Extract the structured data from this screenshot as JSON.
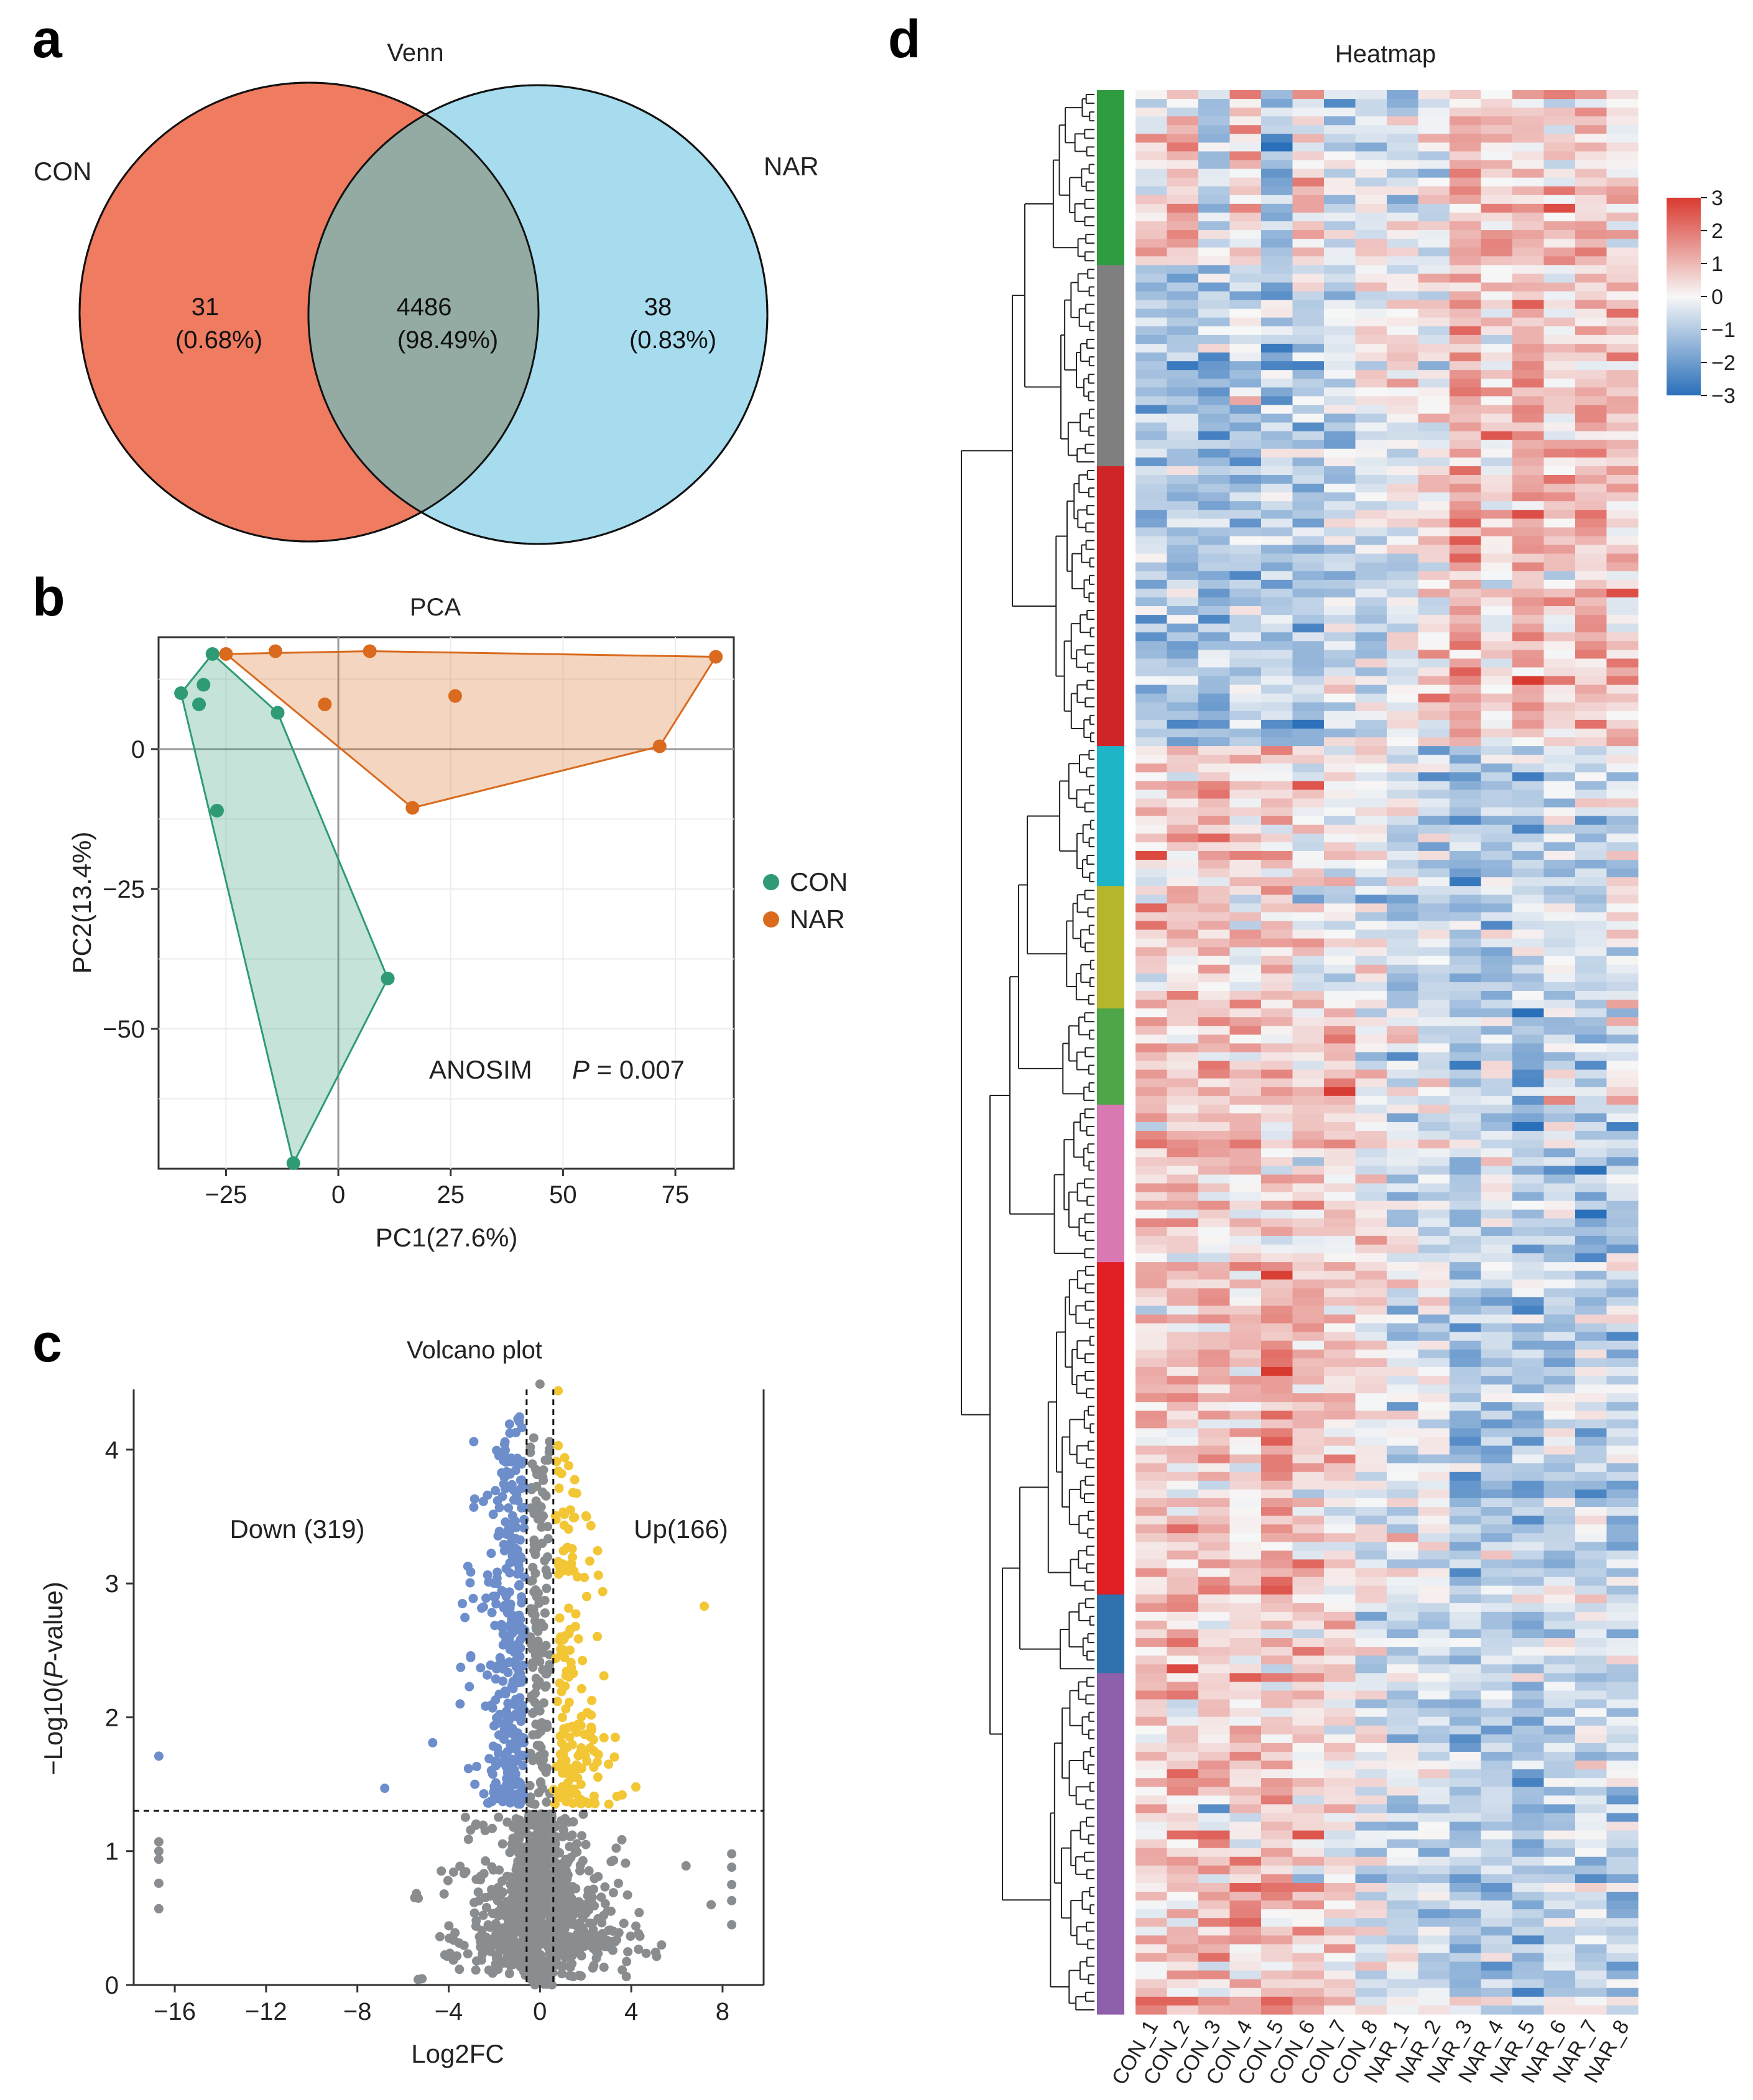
{
  "panel_labels": {
    "a": "a",
    "b": "b",
    "c": "c",
    "d": "d"
  },
  "colors": {
    "con_venn": "#ef7b60",
    "nar_venn": "#a6dcee",
    "overlap": "#93aba3",
    "con_pca": "#2e9b74",
    "nar_pca": "#d96a1e",
    "down": "#6d8ecb",
    "up": "#f2c634",
    "ns": "#8a8d90"
  },
  "chart_data": [
    {
      "type": "venn",
      "title": "Venn",
      "sets": [
        {
          "name": "CON",
          "only_count": "31",
          "only_pct": "(0.68%)"
        },
        {
          "name": "NAR",
          "only_count": "38",
          "only_pct": "(0.83%)"
        }
      ],
      "overlap": {
        "count": "4486",
        "pct": "(98.49%)"
      }
    },
    {
      "type": "scatter",
      "title": "PCA",
      "xlabel": "PC1(27.6%)",
      "ylabel": "PC2(13.4%)",
      "xlim": [
        -40,
        88
      ],
      "ylim": [
        -75,
        20
      ],
      "xticks": [
        -25,
        0,
        25,
        50,
        75
      ],
      "yticks": [
        0,
        -25,
        -50
      ],
      "annotation": {
        "text": "ANOSIM",
        "p_label": "P",
        "p_value": " = 0.007"
      },
      "legend": {
        "position": "right",
        "items": [
          "CON",
          "NAR"
        ]
      },
      "series": [
        {
          "name": "CON",
          "points": [
            [
              -35,
              10
            ],
            [
              -28,
              17
            ],
            [
              -30,
              11.5
            ],
            [
              -31,
              8
            ],
            [
              -13.5,
              6.5
            ],
            [
              -27,
              -11
            ],
            [
              11,
              -41
            ],
            [
              -10,
              -74
            ]
          ],
          "hull": [
            [
              -35,
              10
            ],
            [
              -28,
              17
            ],
            [
              -13.5,
              6.5
            ],
            [
              11,
              -41
            ],
            [
              -10,
              -74
            ]
          ]
        },
        {
          "name": "NAR",
          "points": [
            [
              -25,
              17
            ],
            [
              -14,
              17.5
            ],
            [
              7,
              17.5
            ],
            [
              84,
              16.5
            ],
            [
              -3,
              8
            ],
            [
              26,
              9.5
            ],
            [
              71.5,
              0.5
            ],
            [
              16.5,
              -10.5
            ]
          ],
          "hull": [
            [
              -25,
              17
            ],
            [
              7,
              17.5
            ],
            [
              84,
              16.5
            ],
            [
              71.5,
              0.5
            ],
            [
              16.5,
              -10.5
            ]
          ]
        }
      ]
    },
    {
      "type": "scatter",
      "title": "Volcano plot",
      "xlabel": "Log2FC",
      "ylabel_pre": "−Log10(",
      "ylabel_it": "P",
      "ylabel_post": "-value)",
      "xlim": [
        -17.8,
        9.8
      ],
      "ylim": [
        0,
        4.45
      ],
      "xticks": [
        -16,
        -12,
        -8,
        -4,
        0,
        4,
        8
      ],
      "xtick_labels": [
        "−16",
        "−12",
        "−8",
        "−4",
        "0",
        "4",
        "8"
      ],
      "yticks": [
        0,
        1,
        2,
        3,
        4
      ],
      "thresholds": {
        "fc": [
          -0.585,
          0.585
        ],
        "p_line": 1.301
      },
      "labels": {
        "down": "Down (319)",
        "up": "Up(166)"
      },
      "counts": {
        "down": 319,
        "up": 166
      },
      "down_extra": [
        [
          -16.7,
          1.71
        ],
        [
          -6.8,
          1.47
        ],
        [
          -4.7,
          1.81
        ],
        [
          -3.5,
          2.1
        ],
        [
          -3.4,
          2.85
        ],
        [
          -2.9,
          3.57
        ],
        [
          -2.9,
          4.06
        ],
        [
          -2.3,
          3.66
        ],
        [
          -2.6,
          2.37
        ]
      ],
      "up_extra": [
        [
          7.2,
          2.83
        ],
        [
          4.2,
          1.48
        ],
        [
          3.6,
          1.42
        ],
        [
          3.3,
          1.85
        ],
        [
          2.8,
          2.31
        ],
        [
          0.8,
          4.44
        ],
        [
          0.8,
          4.03
        ],
        [
          1.2,
          3.27
        ]
      ],
      "ns_extra": [
        [
          -16.7,
          1.07
        ],
        [
          -16.7,
          1.0
        ],
        [
          -16.7,
          0.94
        ],
        [
          -16.7,
          0.76
        ],
        [
          -16.7,
          0.57
        ],
        [
          8.4,
          0.98
        ],
        [
          8.4,
          0.88
        ],
        [
          8.4,
          0.75
        ],
        [
          8.4,
          0.63
        ],
        [
          8.4,
          0.45
        ],
        [
          6.4,
          0.89
        ],
        [
          7.5,
          0.6
        ],
        [
          -4.2,
          0.68
        ],
        [
          0,
          4.49
        ]
      ]
    },
    {
      "type": "heatmap",
      "title": "Heatmap",
      "columns": [
        "CON_1",
        "CON_2",
        "CON_3",
        "CON_4",
        "CON_5",
        "CON_6",
        "CON_7",
        "CON_8",
        "NAR_1",
        "NAR_2",
        "NAR_3",
        "NAR_4",
        "NAR_5",
        "NAR_6",
        "NAR_7",
        "NAR_8"
      ],
      "n_rows": 220,
      "clusters": [
        {
          "color": "#2e9c3f",
          "rows": 20,
          "pattern": [
            0.2,
            0.5,
            -0.6,
            0.3,
            -0.9,
            0.4,
            -0.5,
            -0.1,
            -0.5,
            -0.2,
            0.6,
            0.3,
            0.5,
            0.4,
            0.5,
            0.1
          ]
        },
        {
          "color": "#7f7f7f",
          "rows": 23,
          "pattern": [
            -0.8,
            -0.9,
            -0.8,
            -0.6,
            -0.7,
            -0.6,
            -0.5,
            -0.2,
            0.1,
            0.2,
            0.9,
            0.3,
            0.9,
            0.3,
            0.7,
            0.5
          ]
        },
        {
          "color": "#d02528",
          "rows": 32,
          "pattern": [
            -0.7,
            -0.6,
            -0.9,
            -0.6,
            -0.5,
            -0.7,
            -0.4,
            -0.3,
            0.1,
            0.3,
            1.0,
            0.2,
            1.0,
            0.4,
            0.6,
            0.6
          ]
        },
        {
          "color": "#1eb5c9",
          "rows": 16,
          "pattern": [
            0.5,
            0.6,
            0.5,
            0.4,
            0.6,
            0.3,
            0.3,
            0.0,
            -0.2,
            -0.5,
            -1.0,
            -0.5,
            -0.7,
            -0.3,
            -0.4,
            -0.3
          ]
        },
        {
          "color": "#b5b62c",
          "rows": 14,
          "pattern": [
            0.4,
            0.4,
            0.5,
            0.4,
            0.4,
            0.2,
            0.1,
            -0.2,
            -0.6,
            -0.4,
            -0.7,
            -0.7,
            -0.4,
            -0.2,
            -0.6,
            -0.1
          ]
        },
        {
          "color": "#4fa54a",
          "rows": 11,
          "pattern": [
            0.4,
            0.5,
            0.7,
            0.3,
            0.5,
            0.5,
            0.9,
            0.0,
            -0.2,
            -0.3,
            -0.5,
            -0.4,
            -0.8,
            -0.2,
            -0.6,
            -0.2
          ]
        },
        {
          "color": "#d879b4",
          "rows": 18,
          "pattern": [
            0.6,
            0.5,
            0.4,
            0.4,
            0.3,
            0.4,
            0.3,
            0.1,
            -0.2,
            -0.3,
            -0.5,
            -0.4,
            -0.8,
            -0.5,
            -1.1,
            -0.5
          ]
        },
        {
          "color": "#e01e24",
          "rows": 38,
          "pattern": [
            0.5,
            0.4,
            0.6,
            0.5,
            1.1,
            0.6,
            0.4,
            0.1,
            -0.3,
            -0.2,
            -0.9,
            -0.6,
            -0.8,
            -0.5,
            -0.5,
            -0.7
          ]
        },
        {
          "color": "#2f72ae",
          "rows": 9,
          "pattern": [
            0.6,
            0.6,
            0.5,
            0.4,
            0.5,
            0.4,
            0.2,
            -0.3,
            -0.7,
            -0.5,
            -0.5,
            -0.4,
            -0.6,
            -0.3,
            -0.4,
            -0.6
          ]
        },
        {
          "color": "#8e5fab",
          "rows": 39,
          "pattern": [
            0.5,
            0.6,
            0.7,
            0.6,
            0.6,
            0.5,
            0.3,
            -0.1,
            -0.3,
            -0.4,
            -0.7,
            -0.6,
            -0.7,
            -0.5,
            -0.4,
            -0.6
          ]
        }
      ],
      "colorbar": {
        "ticks": [
          3,
          2,
          1,
          0,
          -1,
          -2,
          -3
        ],
        "tick_labels": [
          "3",
          "2",
          "1",
          "0",
          "−1",
          "−2",
          "−3"
        ],
        "low": "#2a6fba",
        "mid": "#f7f7f7",
        "high": "#d93a30"
      }
    }
  ]
}
